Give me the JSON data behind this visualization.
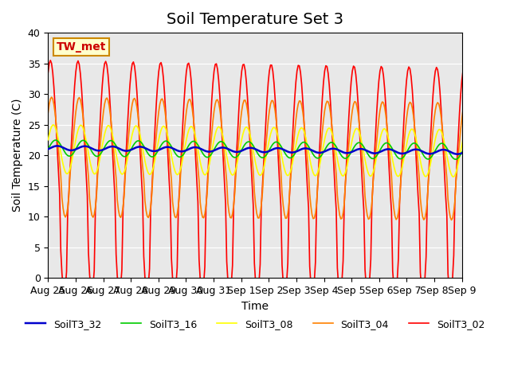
{
  "title": "Soil Temperature Set 3",
  "xlabel": "Time",
  "ylabel": "Soil Temperature (C)",
  "ylim": [
    0,
    40
  ],
  "xlim_labels": [
    "Aug 25",
    "Aug 26",
    "Aug 27",
    "Aug 28",
    "Aug 29",
    "Aug 30",
    "Aug 31",
    "Sep 1",
    "Sep 2",
    "Sep 3",
    "Sep 4",
    "Sep 5",
    "Sep 6",
    "Sep 7",
    "Sep 8",
    "Sep 9"
  ],
  "annotation_text": "TW_met",
  "series_colors": [
    "#ff0000",
    "#ff8000",
    "#ffff00",
    "#00cc00",
    "#0000cc"
  ],
  "series_labels": [
    "SoilT3_02",
    "SoilT3_04",
    "SoilT3_08",
    "SoilT3_16",
    "SoilT3_32"
  ],
  "background_color": "#e8e8e8",
  "title_fontsize": 14,
  "axis_label_fontsize": 10,
  "tick_fontsize": 9
}
